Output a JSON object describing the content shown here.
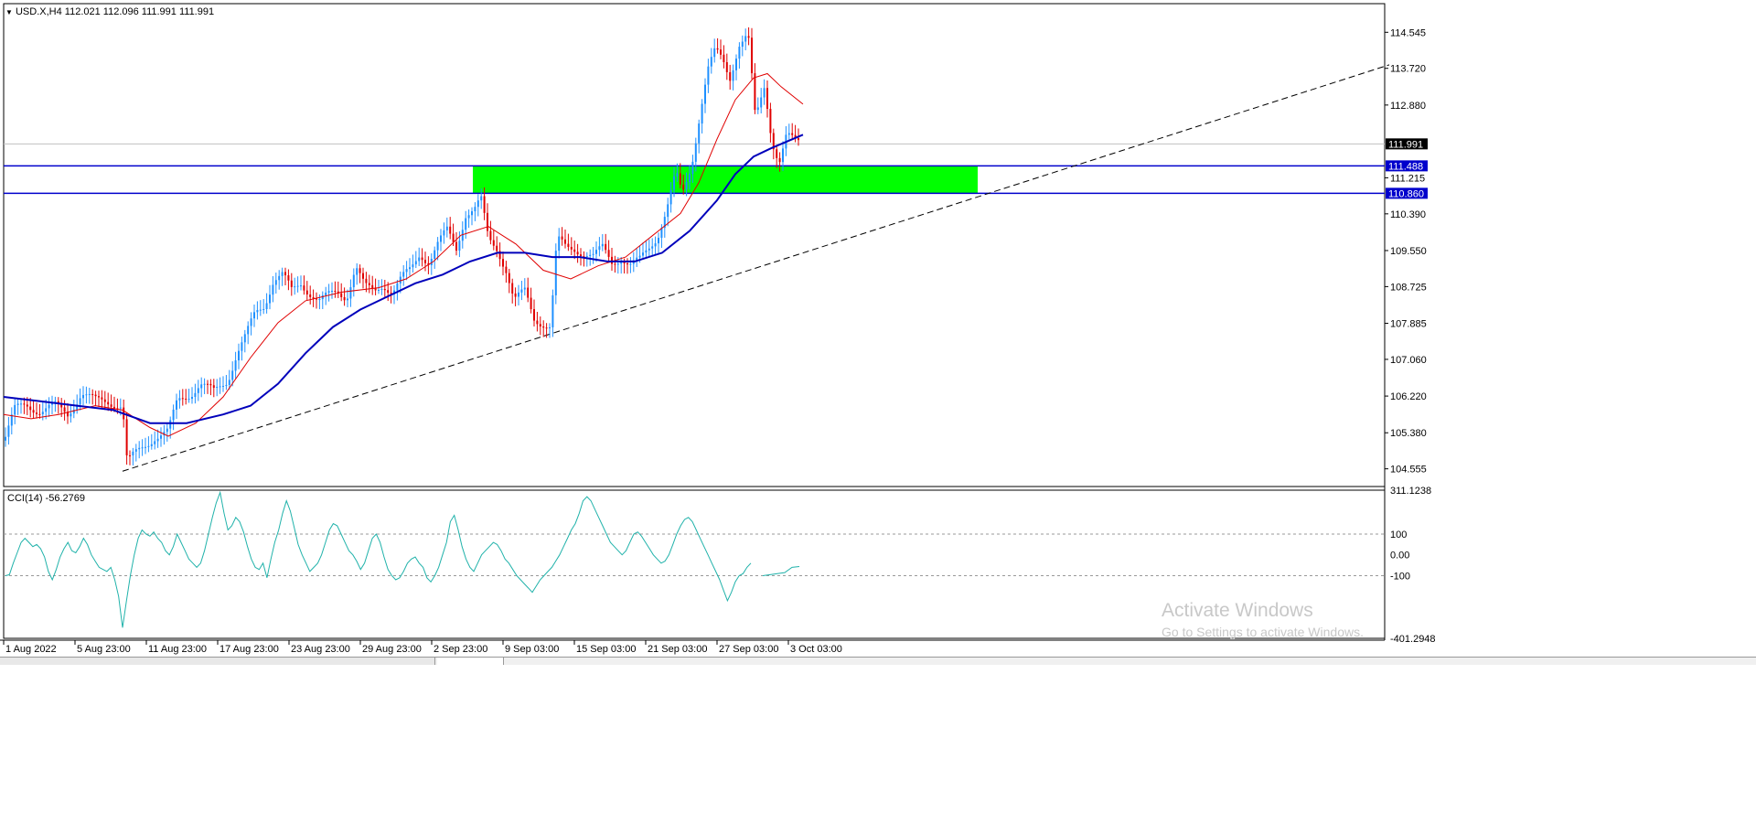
{
  "header": {
    "symbol_line": "USD.X,H4  112.021 112.096 111.991 111.991"
  },
  "indicator": {
    "label": "CCI(14) -56.2769",
    "scale": [
      "311.1238",
      "100",
      "0.00",
      "-100",
      "-401.2948"
    ],
    "levels": [
      311.1238,
      100,
      0,
      -100,
      -401.2948
    ],
    "values": [
      -100,
      -95,
      -40,
      10,
      60,
      80,
      60,
      40,
      50,
      30,
      -10,
      -80,
      -120,
      -70,
      -10,
      30,
      60,
      20,
      10,
      40,
      80,
      50,
      0,
      -30,
      -60,
      -70,
      -80,
      -60,
      -120,
      -200,
      -350,
      -220,
      -100,
      0,
      80,
      120,
      100,
      90,
      110,
      80,
      60,
      20,
      0,
      40,
      100,
      60,
      20,
      -20,
      -40,
      -60,
      -40,
      20,
      100,
      180,
      250,
      300,
      200,
      120,
      140,
      180,
      160,
      110,
      40,
      -20,
      -60,
      -70,
      -40,
      -110,
      -20,
      60,
      120,
      200,
      260,
      210,
      130,
      50,
      0,
      -40,
      -80,
      -60,
      -40,
      0,
      60,
      120,
      150,
      140,
      100,
      60,
      20,
      0,
      -30,
      -70,
      -40,
      20,
      80,
      100,
      60,
      -10,
      -70,
      -100,
      -120,
      -110,
      -80,
      -40,
      -20,
      -10,
      -40,
      -60,
      -110,
      -130,
      -100,
      -60,
      0,
      60,
      160,
      190,
      120,
      40,
      -20,
      -60,
      -80,
      -40,
      0,
      20,
      40,
      60,
      50,
      20,
      -20,
      -40,
      -70,
      -100,
      -120,
      -140,
      -160,
      -180,
      -150,
      -120,
      -100,
      -80,
      -60,
      -30,
      0,
      40,
      80,
      120,
      150,
      200,
      260,
      280,
      260,
      220,
      180,
      140,
      100,
      60,
      40,
      20,
      0,
      20,
      60,
      100,
      110,
      90,
      60,
      30,
      0,
      -20,
      -40,
      -30,
      0,
      50,
      100,
      140,
      170,
      180,
      160,
      120,
      80,
      40,
      0,
      -40,
      -80,
      -120,
      -170,
      -220,
      -180,
      -130,
      -100,
      -90,
      -60,
      -40
    ],
    "tail_values": [
      -100,
      -95,
      -90,
      -85,
      -60,
      -56.27
    ]
  },
  "chart_data": {
    "type": "line",
    "title": "USD.X,H4",
    "x_ticks": [
      "1 Aug 2022",
      "5 Aug 23:00",
      "11 Aug 23:00",
      "17 Aug 23:00",
      "23 Aug 23:00",
      "29 Aug 23:00",
      "2 Sep 23:00",
      "9 Sep 03:00",
      "15 Sep 03:00",
      "21 Sep 03:00",
      "27 Sep 03:00",
      "3 Oct 03:00"
    ],
    "y_ticks": [
      "114.545",
      "113.720",
      "112.880",
      "111.215",
      "110.390",
      "109.550",
      "108.725",
      "107.885",
      "107.060",
      "106.220",
      "105.380",
      "104.555"
    ],
    "ylim": [
      104.15,
      115.2
    ],
    "price_labels": [
      {
        "text": "111.991",
        "value": 111.991,
        "color": "#000000"
      },
      {
        "text": "111.488",
        "value": 111.488,
        "color": "#0000cc"
      },
      {
        "text": "110.860",
        "value": 110.86,
        "color": "#0000cc"
      }
    ],
    "bull_color": "#1e90ff",
    "bear_color": "#e00000",
    "ma_fast_color": "#e00000",
    "ma_slow_color": "#0000bb",
    "zone_color": "#00ff00",
    "close_path": [
      [
        0,
        105.2
      ],
      [
        12,
        105.9
      ],
      [
        25,
        106.0
      ],
      [
        40,
        105.9
      ],
      [
        55,
        106.0
      ],
      [
        70,
        105.8
      ],
      [
        85,
        106.3
      ],
      [
        100,
        106.1
      ],
      [
        115,
        106.1
      ],
      [
        130,
        106.0
      ],
      [
        135,
        104.7
      ],
      [
        150,
        105.0
      ],
      [
        165,
        105.3
      ],
      [
        180,
        105.4
      ],
      [
        190,
        106.1
      ],
      [
        205,
        106.3
      ],
      [
        215,
        106.5
      ],
      [
        230,
        106.3
      ],
      [
        245,
        106.6
      ],
      [
        255,
        107.2
      ],
      [
        265,
        107.6
      ],
      [
        275,
        108.1
      ],
      [
        285,
        108.3
      ],
      [
        295,
        108.9
      ],
      [
        305,
        109.0
      ],
      [
        315,
        108.6
      ],
      [
        325,
        108.8
      ],
      [
        335,
        108.6
      ],
      [
        345,
        108.4
      ],
      [
        355,
        108.5
      ],
      [
        365,
        108.6
      ],
      [
        375,
        108.5
      ],
      [
        385,
        109.2
      ],
      [
        395,
        108.7
      ],
      [
        405,
        108.6
      ],
      [
        415,
        108.8
      ],
      [
        425,
        108.6
      ],
      [
        435,
        108.9
      ],
      [
        445,
        109.1
      ],
      [
        455,
        109.5
      ],
      [
        465,
        109.3
      ],
      [
        475,
        109.7
      ],
      [
        485,
        110.0
      ],
      [
        495,
        109.6
      ],
      [
        505,
        110.4
      ],
      [
        515,
        110.5
      ],
      [
        522,
        110.7
      ],
      [
        530,
        109.8
      ],
      [
        540,
        109.6
      ],
      [
        550,
        109.1
      ],
      [
        558,
        108.4
      ],
      [
        570,
        108.6
      ],
      [
        580,
        108.0
      ],
      [
        590,
        107.9
      ],
      [
        598,
        107.8
      ],
      [
        605,
        109.8
      ],
      [
        615,
        109.6
      ],
      [
        625,
        109.6
      ],
      [
        635,
        109.5
      ],
      [
        645,
        109.4
      ],
      [
        655,
        109.6
      ],
      [
        665,
        109.3
      ],
      [
        675,
        109.4
      ],
      [
        685,
        109.2
      ],
      [
        695,
        109.3
      ],
      [
        705,
        109.6
      ],
      [
        715,
        109.9
      ],
      [
        725,
        110.5
      ],
      [
        735,
        111.3
      ],
      [
        742,
        110.8
      ],
      [
        752,
        111.5
      ],
      [
        762,
        112.8
      ],
      [
        770,
        113.7
      ],
      [
        778,
        114.1
      ],
      [
        786,
        113.9
      ],
      [
        794,
        113.5
      ],
      [
        804,
        114.3
      ],
      [
        814,
        114.5
      ],
      [
        822,
        112.5
      ],
      [
        832,
        113.3
      ],
      [
        840,
        112.1
      ],
      [
        848,
        111.6
      ],
      [
        856,
        112.2
      ],
      [
        866,
        112.0
      ],
      [
        874,
        111.991
      ]
    ],
    "ma_fast": [
      [
        0,
        105.8
      ],
      [
        30,
        105.7
      ],
      [
        60,
        105.8
      ],
      [
        100,
        106.0
      ],
      [
        130,
        105.9
      ],
      [
        160,
        105.5
      ],
      [
        180,
        105.3
      ],
      [
        210,
        105.6
      ],
      [
        240,
        106.2
      ],
      [
        270,
        107.1
      ],
      [
        300,
        107.9
      ],
      [
        330,
        108.4
      ],
      [
        370,
        108.6
      ],
      [
        410,
        108.7
      ],
      [
        440,
        108.9
      ],
      [
        470,
        109.3
      ],
      [
        500,
        109.9
      ],
      [
        530,
        110.1
      ],
      [
        560,
        109.7
      ],
      [
        590,
        109.1
      ],
      [
        620,
        108.9
      ],
      [
        650,
        109.2
      ],
      [
        680,
        109.4
      ],
      [
        710,
        109.9
      ],
      [
        740,
        110.4
      ],
      [
        760,
        111.1
      ],
      [
        780,
        112.1
      ],
      [
        800,
        113.0
      ],
      [
        820,
        113.5
      ],
      [
        835,
        113.6
      ],
      [
        850,
        113.3
      ],
      [
        874,
        112.9
      ]
    ],
    "ma_slow": [
      [
        0,
        106.2
      ],
      [
        40,
        106.1
      ],
      [
        80,
        106.0
      ],
      [
        120,
        105.9
      ],
      [
        160,
        105.6
      ],
      [
        200,
        105.6
      ],
      [
        240,
        105.8
      ],
      [
        270,
        106.0
      ],
      [
        300,
        106.5
      ],
      [
        330,
        107.2
      ],
      [
        360,
        107.8
      ],
      [
        390,
        108.2
      ],
      [
        420,
        108.5
      ],
      [
        450,
        108.8
      ],
      [
        480,
        109.0
      ],
      [
        510,
        109.3
      ],
      [
        540,
        109.5
      ],
      [
        570,
        109.5
      ],
      [
        600,
        109.4
      ],
      [
        630,
        109.4
      ],
      [
        660,
        109.3
      ],
      [
        690,
        109.3
      ],
      [
        720,
        109.5
      ],
      [
        750,
        110.0
      ],
      [
        780,
        110.7
      ],
      [
        800,
        111.3
      ],
      [
        820,
        111.7
      ],
      [
        840,
        111.9
      ],
      [
        874,
        112.2
      ]
    ],
    "trendline": [
      [
        130,
        104.5
      ],
      [
        1515,
        113.8
      ]
    ],
    "zone": {
      "x0": 513,
      "x1": 1065,
      "ymin": 110.86,
      "ymax": 111.488
    }
  },
  "bottom_tabs": [
    "",
    ""
  ],
  "watermark": {
    "line1": "Activate Windows",
    "line2": "Go to Settings to activate Windows."
  }
}
